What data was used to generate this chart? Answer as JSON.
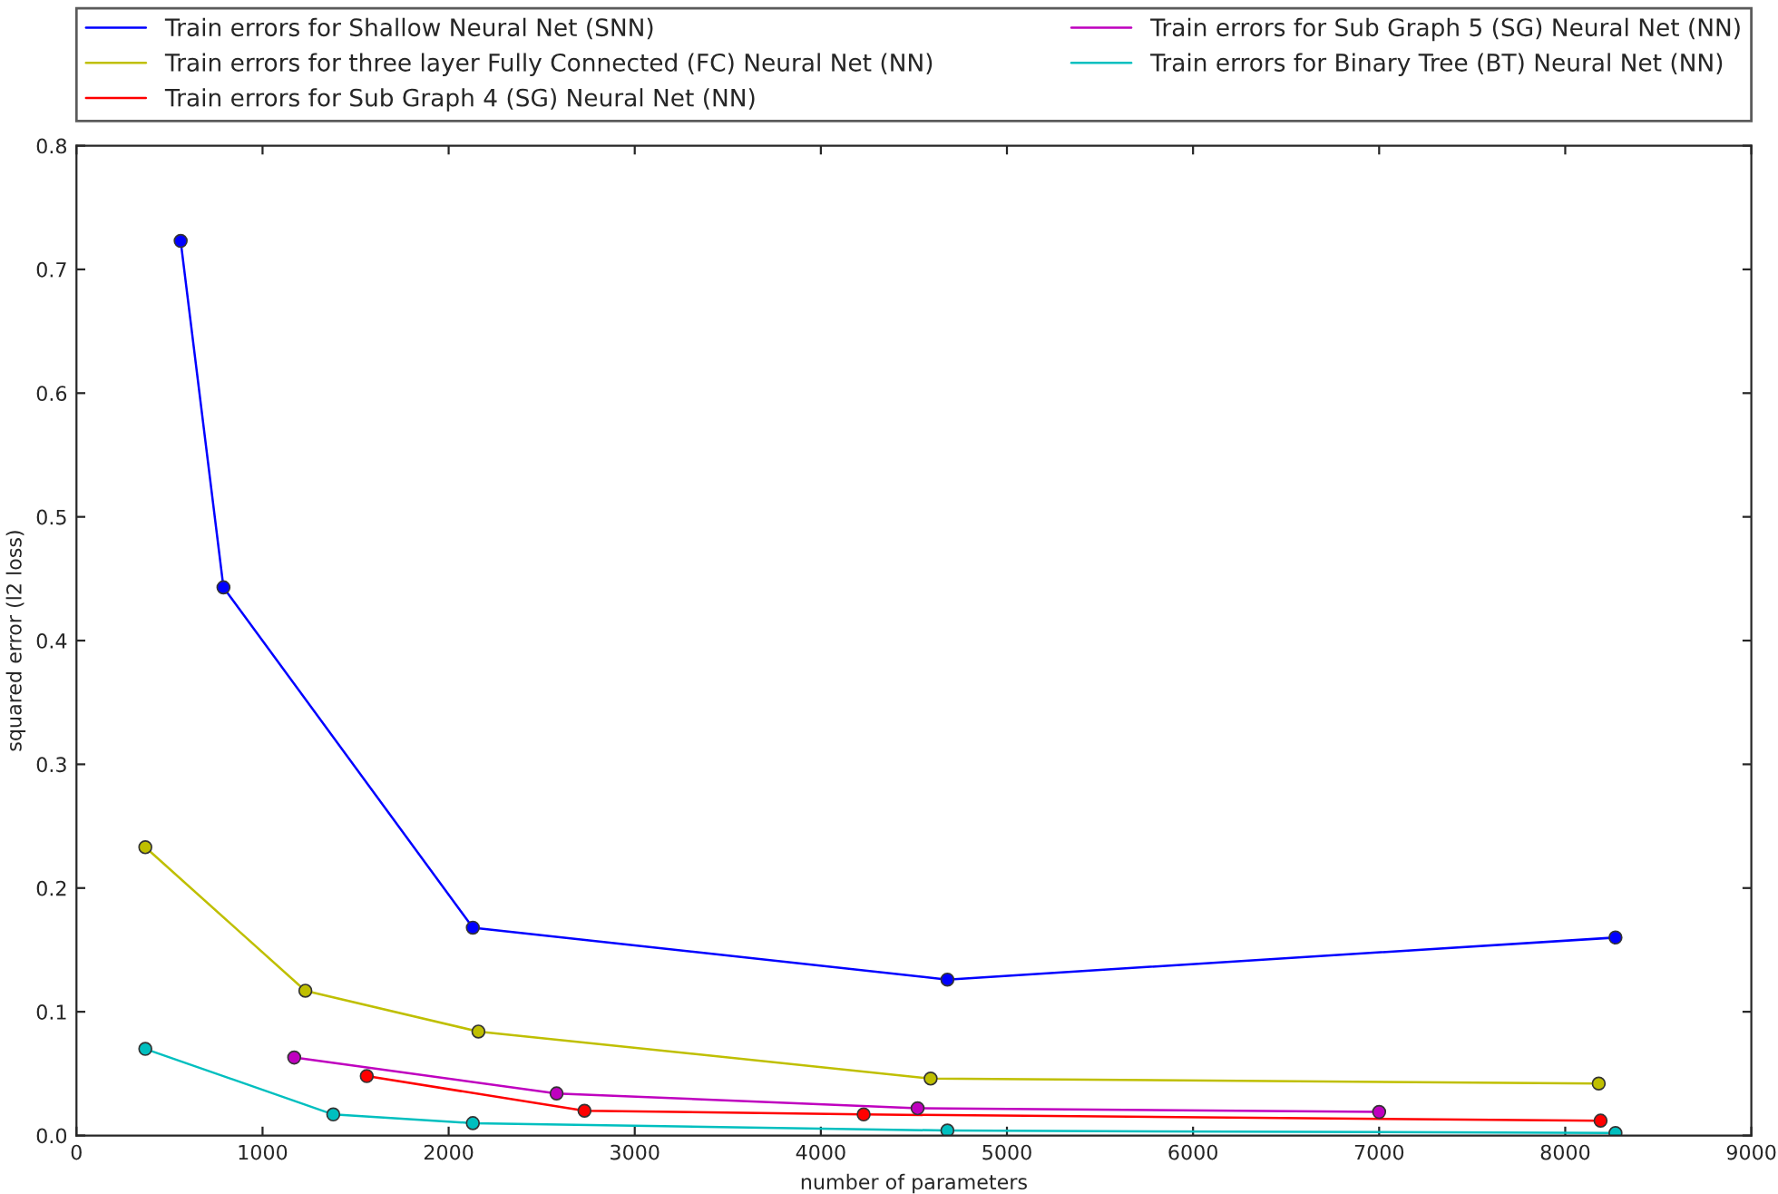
{
  "chart_data": {
    "type": "line",
    "xlabel": "number of parameters",
    "ylabel": "squared error (l2 loss)",
    "xlim": [
      0,
      9000
    ],
    "xticks": [
      0,
      1000,
      2000,
      3000,
      4000,
      5000,
      6000,
      7000,
      8000,
      9000
    ],
    "ylim": [
      0.0,
      0.8
    ],
    "yticks": [
      {
        "value": 0.0,
        "label": "0.0"
      },
      0.1,
      0.2,
      0.3,
      0.4,
      0.5,
      0.6,
      0.7,
      0.8
    ],
    "grid": false,
    "legend": "top",
    "marker": "circle",
    "line_style": "solid",
    "series": [
      {
        "name": "Train errors for Shallow Neural Net (SNN)",
        "color": "#0000ff",
        "x": [
          560,
          790,
          2130,
          4680,
          8270
        ],
        "values": [
          0.723,
          0.443,
          0.168,
          0.126,
          0.16
        ]
      },
      {
        "name": "Train errors for three layer Fully Connected (FC) Neural Net (NN)",
        "color": "#bfbf00",
        "x": [
          370,
          1230,
          2160,
          4590,
          8180
        ],
        "values": [
          0.233,
          0.117,
          0.084,
          0.046,
          0.042
        ]
      },
      {
        "name": "Train errors for Sub Graph 4 (SG) Neural Net (NN)",
        "color": "#ff0000",
        "x": [
          1560,
          2730,
          4230,
          8190
        ],
        "values": [
          0.048,
          0.02,
          0.017,
          0.012
        ]
      },
      {
        "name": "Train errors for Sub Graph 5 (SG) Neural Net (NN)",
        "color": "#bf00bf",
        "x": [
          1170,
          2580,
          4520,
          7000
        ],
        "values": [
          0.063,
          0.034,
          0.022,
          0.019
        ]
      },
      {
        "name": "Train errors for Binary Tree (BT) Neural Net (NN)",
        "color": "#00bfbf",
        "x": [
          370,
          1380,
          2130,
          4680,
          8270
        ],
        "values": [
          0.07,
          0.017,
          0.01,
          0.004,
          0.002
        ]
      }
    ]
  }
}
